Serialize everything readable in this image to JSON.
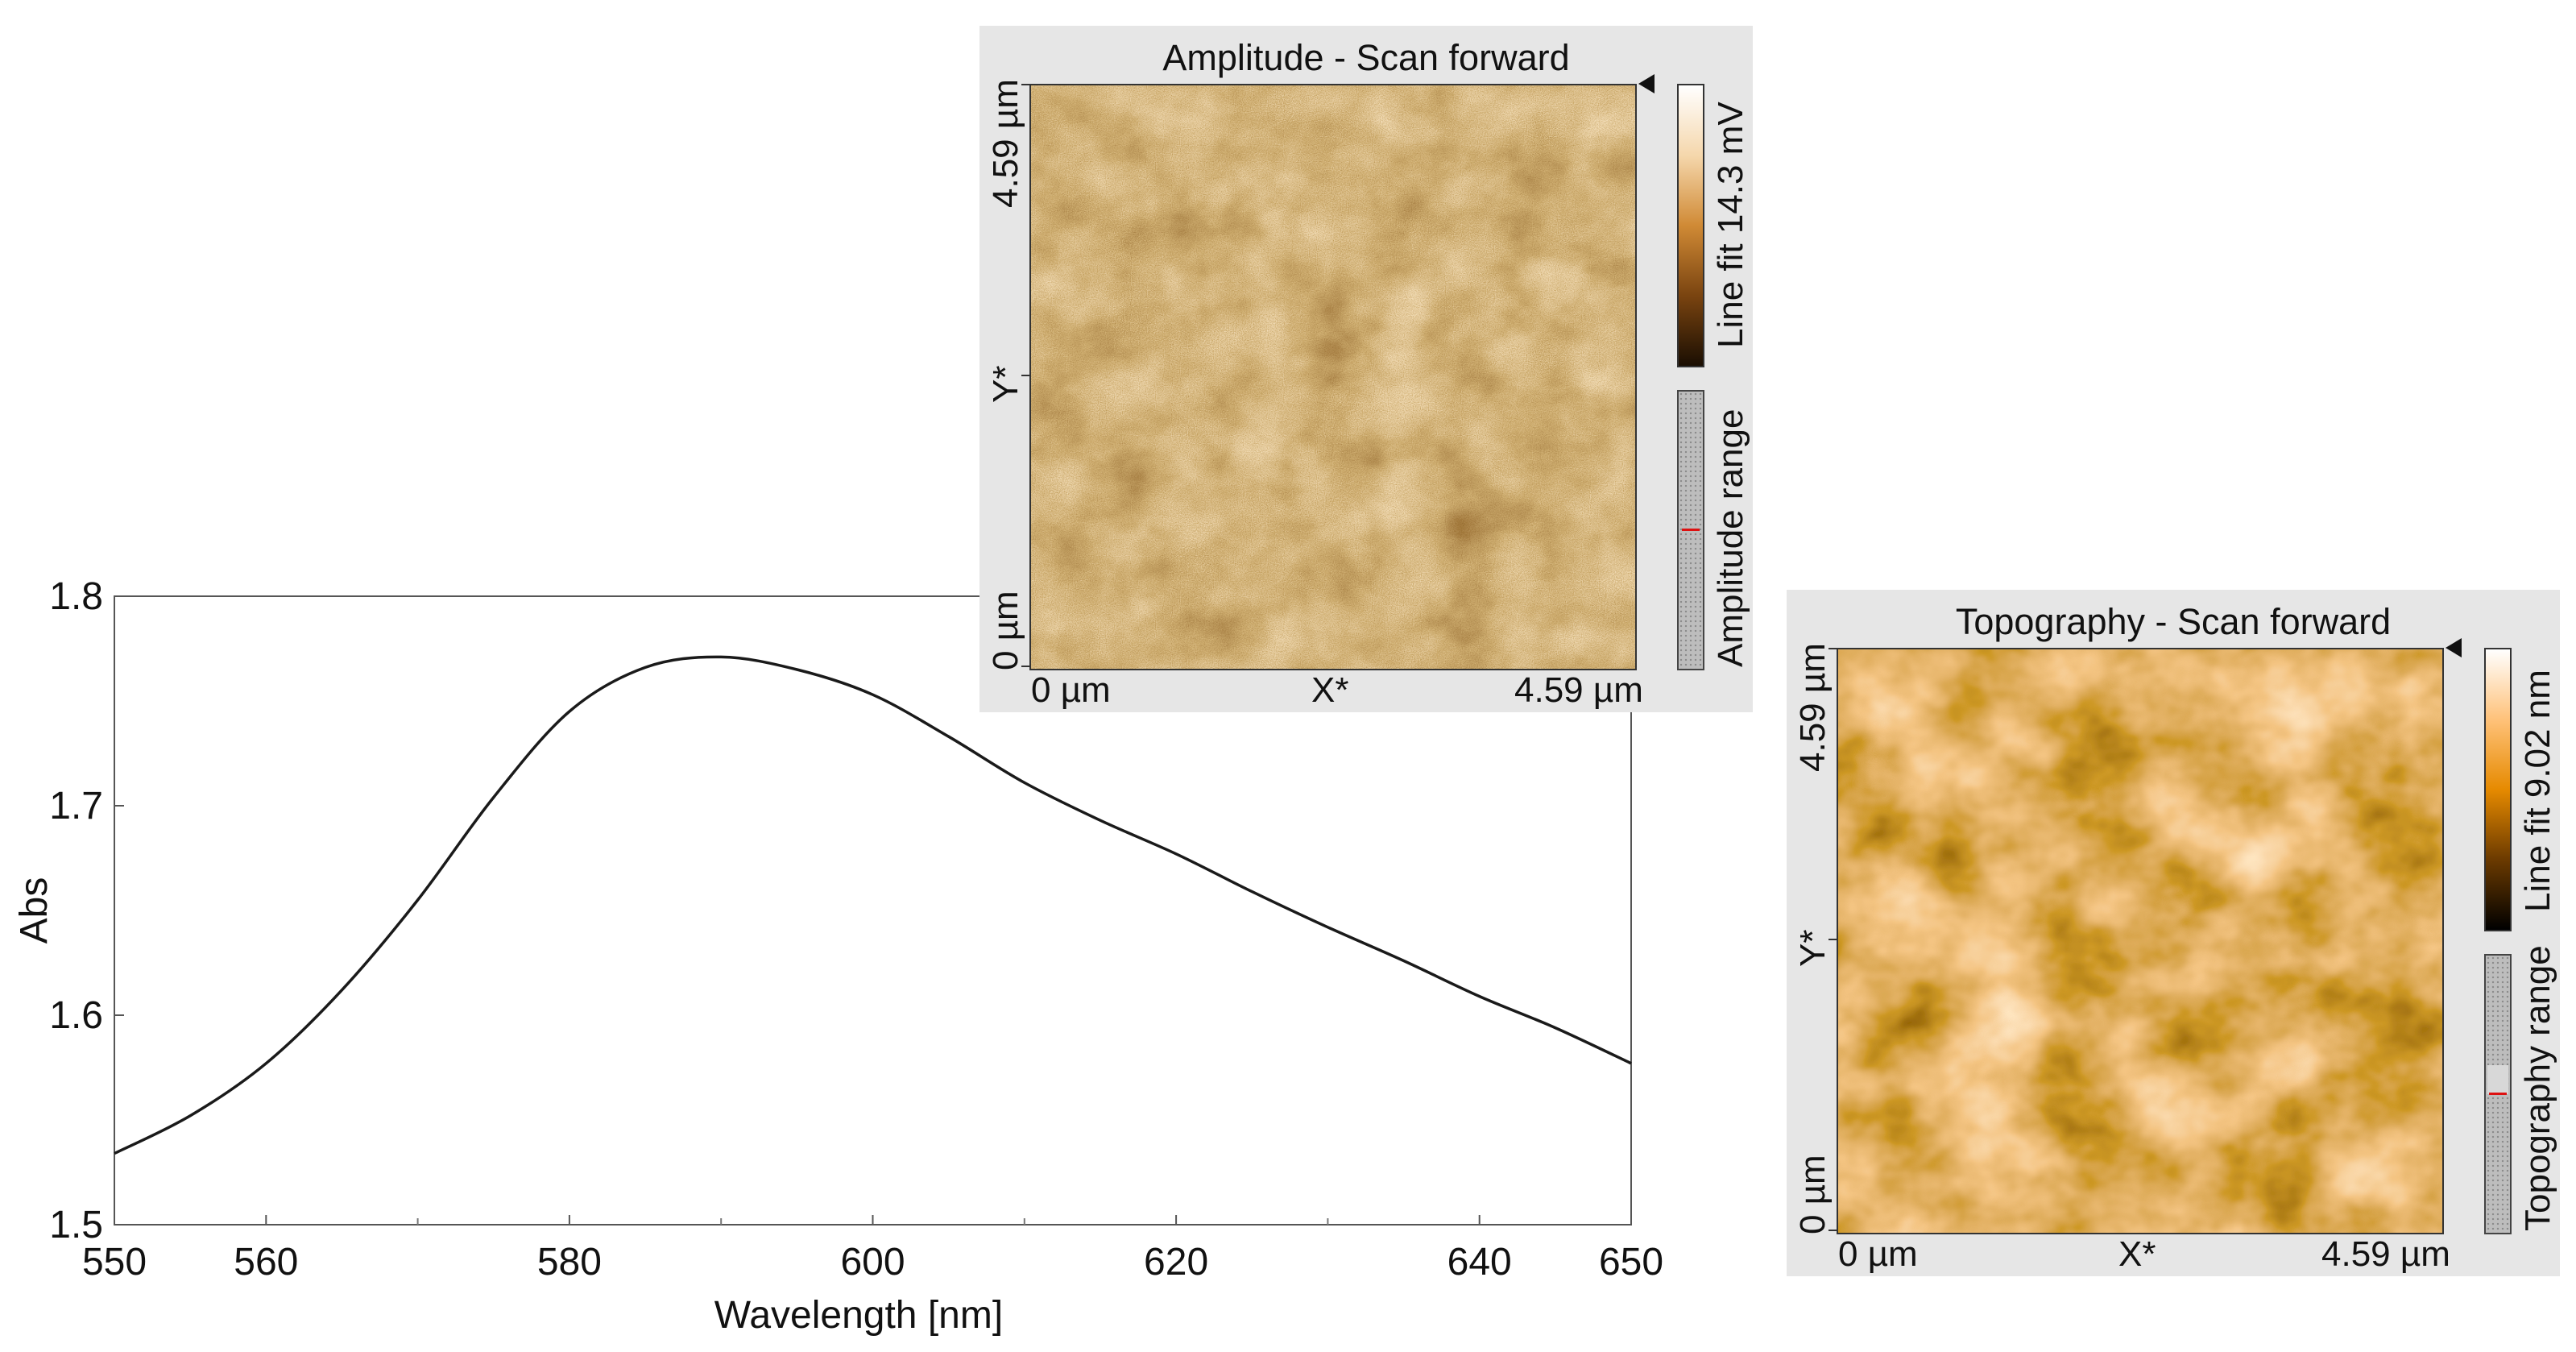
{
  "chart_data": [
    {
      "type": "line",
      "xlabel": "Wavelength [nm]",
      "ylabel": "Abs",
      "xlim": [
        550,
        650
      ],
      "ylim": [
        1.5,
        1.8
      ],
      "x_ticks": [
        "550",
        "560",
        "580",
        "600",
        "620",
        "640",
        "650"
      ],
      "y_ticks": [
        "1.5",
        "1.6",
        "1.7",
        "1.8"
      ],
      "grid": false,
      "series": [
        {
          "x": [
            550,
            555,
            560,
            565,
            570,
            575,
            580,
            585,
            590,
            595,
            600,
            605,
            610,
            615,
            620,
            625,
            630,
            635,
            640,
            645,
            650
          ],
          "values": [
            1.534,
            1.552,
            1.577,
            1.612,
            1.655,
            1.704,
            1.745,
            1.766,
            1.771,
            1.765,
            1.753,
            1.733,
            1.711,
            1.693,
            1.677,
            1.659,
            1.642,
            1.626,
            1.609,
            1.594,
            1.577
          ]
        }
      ]
    }
  ],
  "panels": {
    "amplitude": {
      "title": "Amplitude - Scan forward",
      "x_start": "0 µm",
      "x_axis": "X*",
      "x_end": "4.59 µm",
      "y_start": "0 µm",
      "y_axis": "Y*",
      "y_end": "4.59 µm",
      "colorbar_label": "Line fit 14.3 mV",
      "range_label": "Amplitude range",
      "colormap": [
        "#1a0e02",
        "#7a4410",
        "#d08a35",
        "#f5d7ac",
        "#ffffff"
      ]
    },
    "topography": {
      "title": "Topography - Scan forward",
      "x_start": "0 µm",
      "x_axis": "X*",
      "x_end": "4.59 µm",
      "y_start": "0 µm",
      "y_axis": "Y*",
      "y_end": "4.59 µm",
      "colorbar_label": "Line fit 9.02 nm",
      "range_label": "Topography range",
      "colormap": [
        "#000000",
        "#6b3a00",
        "#e68a00",
        "#ffc27a",
        "#ffffff"
      ]
    }
  }
}
